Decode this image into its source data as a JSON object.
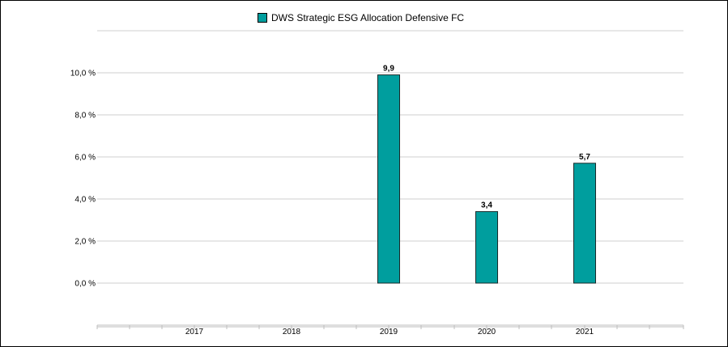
{
  "chart_data": {
    "type": "bar",
    "categories": [
      "2017",
      "2018",
      "2019",
      "2020",
      "2021"
    ],
    "series": [
      {
        "name": "DWS Strategic ESG Allocation Defensive  FC",
        "values": [
          null,
          null,
          9.9,
          3.4,
          5.7
        ],
        "labels": [
          "",
          "",
          "9,9",
          "3,4",
          "5,7"
        ]
      }
    ],
    "yticks": [
      0,
      2,
      4,
      6,
      8,
      10
    ],
    "ytick_labels": [
      "0,0 %",
      "2,0 %",
      "4,0 %",
      "6,0 %",
      "8,0 %",
      "10,0 %"
    ],
    "ylim": [
      0,
      12
    ],
    "grid": true,
    "legend_position": "top-center",
    "colors": {
      "bar": "#009E9E",
      "bar_border": "#1a2a2a",
      "grid": "#cfcfcf",
      "axis": "#bdbdbd"
    }
  }
}
